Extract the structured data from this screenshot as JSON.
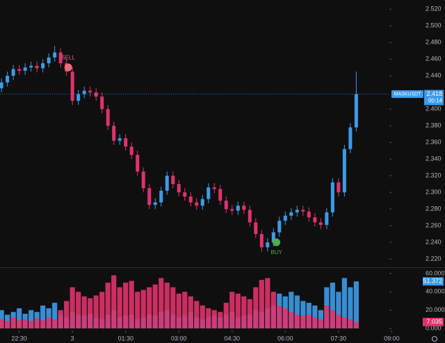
{
  "chart_data": [
    {
      "type": "candlestick",
      "symbol": "MASKUSDT",
      "countdown": "00:14",
      "up_color": "#3d9be9",
      "down_color": "#e0336b",
      "open": [
        2.425,
        2.432,
        2.44,
        2.448,
        2.446,
        2.45,
        2.452,
        2.449,
        2.455,
        2.462,
        2.468,
        2.455,
        2.445,
        2.41,
        2.418,
        2.422,
        2.42,
        2.415,
        2.4,
        2.38,
        2.362,
        2.365,
        2.355,
        2.345,
        2.325,
        2.305,
        2.285,
        2.288,
        2.302,
        2.32,
        2.31,
        2.3,
        2.295,
        2.288,
        2.284,
        2.292,
        2.306,
        2.304,
        2.29,
        2.28,
        2.278,
        2.284,
        2.279,
        2.264,
        2.25,
        2.234,
        2.24,
        2.252,
        2.266,
        2.272,
        2.276,
        2.279,
        2.277,
        2.27,
        2.264,
        2.261,
        2.276,
        2.312,
        2.3,
        2.352,
        2.378
      ],
      "high": [
        2.437,
        2.445,
        2.453,
        2.453,
        2.455,
        2.457,
        2.457,
        2.46,
        2.467,
        2.476,
        2.473,
        2.46,
        2.45,
        2.423,
        2.427,
        2.427,
        2.425,
        2.42,
        2.405,
        2.385,
        2.37,
        2.37,
        2.36,
        2.35,
        2.33,
        2.31,
        2.293,
        2.307,
        2.325,
        2.325,
        2.315,
        2.305,
        2.3,
        2.293,
        2.297,
        2.311,
        2.311,
        2.309,
        2.295,
        2.285,
        2.289,
        2.289,
        2.284,
        2.269,
        2.255,
        2.245,
        2.257,
        2.271,
        2.277,
        2.281,
        2.284,
        2.284,
        2.282,
        2.275,
        2.269,
        2.281,
        2.317,
        2.317,
        2.357,
        2.383,
        2.445
      ],
      "low": [
        2.42,
        2.427,
        2.435,
        2.441,
        2.441,
        2.445,
        2.444,
        2.444,
        2.45,
        2.457,
        2.45,
        2.44,
        2.405,
        2.405,
        2.413,
        2.415,
        2.41,
        2.395,
        2.375,
        2.357,
        2.357,
        2.35,
        2.34,
        2.32,
        2.3,
        2.28,
        2.28,
        2.283,
        2.297,
        2.305,
        2.295,
        2.29,
        2.283,
        2.279,
        2.279,
        2.287,
        2.299,
        2.285,
        2.275,
        2.273,
        2.273,
        2.274,
        2.259,
        2.245,
        2.229,
        2.229,
        2.235,
        2.247,
        2.261,
        2.267,
        2.271,
        2.272,
        2.265,
        2.259,
        2.256,
        2.256,
        2.271,
        2.295,
        2.295,
        2.347,
        2.373
      ],
      "close": [
        2.432,
        2.44,
        2.448,
        2.446,
        2.45,
        2.452,
        2.449,
        2.455,
        2.462,
        2.468,
        2.455,
        2.445,
        2.41,
        2.418,
        2.422,
        2.42,
        2.415,
        2.4,
        2.38,
        2.362,
        2.365,
        2.355,
        2.345,
        2.325,
        2.305,
        2.285,
        2.288,
        2.302,
        2.32,
        2.31,
        2.3,
        2.295,
        2.288,
        2.284,
        2.292,
        2.306,
        2.304,
        2.29,
        2.28,
        2.278,
        2.284,
        2.279,
        2.264,
        2.25,
        2.234,
        2.24,
        2.252,
        2.266,
        2.272,
        2.276,
        2.279,
        2.277,
        2.27,
        2.264,
        2.261,
        2.276,
        2.312,
        2.3,
        2.352,
        2.378,
        2.418
      ],
      "signals": [
        {
          "label": "SELL",
          "x": 11.3,
          "y": 2.45,
          "color": "#f06b7a"
        },
        {
          "label": "BUY",
          "x": 46.5,
          "y": 2.24,
          "color": "#4caf50"
        }
      ],
      "xlim": [
        -0.25,
        65.6
      ],
      "xticks": [
        {
          "value": 3,
          "label": "22:30"
        },
        {
          "value": 12,
          "label": "3"
        },
        {
          "value": 21,
          "label": "01:30"
        },
        {
          "value": 30,
          "label": "03:00"
        },
        {
          "value": 39,
          "label": "04:30"
        },
        {
          "value": 48,
          "label": "06:00"
        },
        {
          "value": 57,
          "label": "07:30"
        },
        {
          "value": 66,
          "label": "09:00"
        }
      ],
      "ylim": [
        2.21,
        2.531
      ],
      "yticks": [
        {
          "value": 2.22,
          "label": "2.220"
        },
        {
          "value": 2.24,
          "label": "2.240"
        },
        {
          "value": 2.26,
          "label": "2.260"
        },
        {
          "value": 2.28,
          "label": "2.280"
        },
        {
          "value": 2.3,
          "label": "2.300"
        },
        {
          "value": 2.32,
          "label": "2.320"
        },
        {
          "value": 2.34,
          "label": "2.340"
        },
        {
          "value": 2.36,
          "label": "2.360"
        },
        {
          "value": 2.38,
          "label": "2.380"
        },
        {
          "value": 2.4,
          "label": "2.400"
        },
        {
          "value": 2.44,
          "label": "2.440"
        },
        {
          "value": 2.46,
          "label": "2.460"
        },
        {
          "value": 2.48,
          "label": "2.480"
        },
        {
          "value": 2.5,
          "label": "2.500"
        },
        {
          "value": 2.52,
          "label": "2.520"
        }
      ]
    },
    {
      "type": "bar",
      "series": [
        {
          "color": "#3d9be9",
          "values": [
            20,
            15,
            18,
            22,
            16,
            20,
            18,
            25,
            22,
            28,
            15,
            12,
            18,
            15,
            14,
            16,
            12,
            10,
            15,
            20,
            12,
            14,
            15,
            10,
            12,
            15,
            14,
            18,
            20,
            15,
            12,
            14,
            18,
            12,
            10,
            12,
            14,
            12,
            15,
            18,
            12,
            14,
            15,
            20,
            18,
            22,
            25,
            38,
            35,
            40,
            36,
            30,
            28,
            25,
            20,
            45,
            50,
            40,
            55,
            45,
            51.372
          ]
        },
        {
          "color": "#e0336b",
          "values": [
            10,
            8,
            12,
            9,
            10,
            8,
            11,
            9,
            12,
            10,
            20,
            30,
            45,
            40,
            35,
            33,
            36,
            40,
            50,
            58,
            45,
            50,
            52,
            40,
            42,
            45,
            48,
            55,
            50,
            45,
            38,
            40,
            35,
            30,
            25,
            22,
            20,
            18,
            28,
            40,
            38,
            35,
            32,
            45,
            53,
            55,
            40,
            25,
            22,
            18,
            15,
            14,
            15,
            12,
            10,
            25,
            20,
            15,
            12,
            10,
            7.035
          ]
        }
      ],
      "ylim": [
        0,
        66
      ],
      "yticks": [
        {
          "value": 0,
          "label": "0.000"
        },
        {
          "value": 20,
          "label": "20.000"
        },
        {
          "value": 40,
          "label": "40.000"
        },
        {
          "value": 60,
          "label": "60.000"
        }
      ]
    }
  ]
}
